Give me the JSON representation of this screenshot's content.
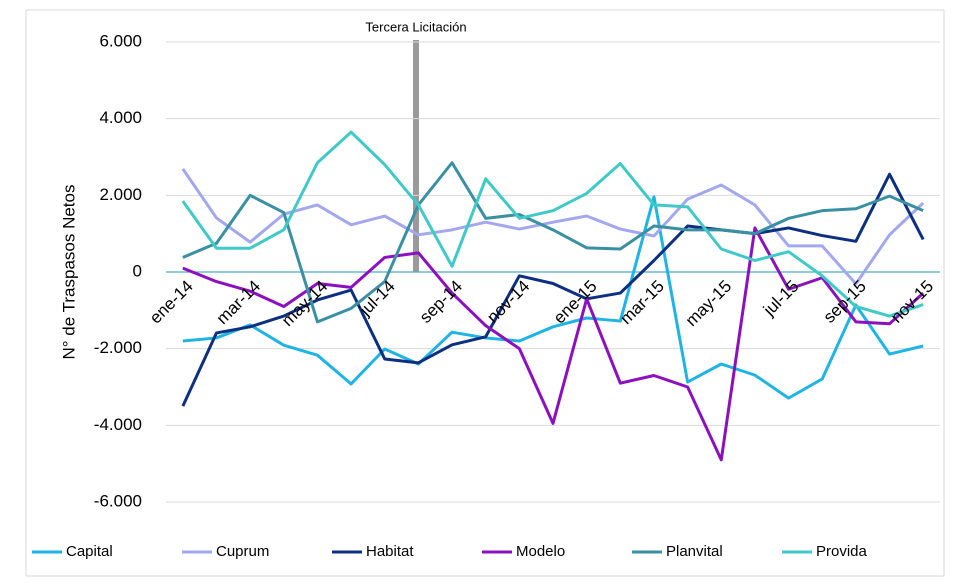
{
  "chart_data": {
    "type": "line",
    "ylabel": "N° de Traspasos Netos",
    "annotation": "Tercera Licitación",
    "categories": [
      "ene-14",
      null,
      "mar-14",
      null,
      "may-14",
      null,
      "jul-14",
      null,
      "sep-14",
      null,
      "nov-14",
      null,
      "ene-15",
      null,
      "mar-15",
      null,
      "may-15",
      null,
      "jul-15",
      null,
      "sep-15",
      null,
      "nov-15"
    ],
    "ylim": [
      -6000,
      6000
    ],
    "yticks": [
      {
        "value": -6000,
        "label": "-6.000"
      },
      {
        "value": -4000,
        "label": "-4.000"
      },
      {
        "value": -2000,
        "label": "-2.000"
      },
      0,
      {
        "value": 2000,
        "label": "2.000"
      },
      {
        "value": 4000,
        "label": "4.000"
      },
      {
        "value": 6000,
        "label": "6.000"
      }
    ],
    "grid": true,
    "legend": "bottom",
    "series": [
      {
        "name": "Capital",
        "color": "#1fb4e4",
        "values": [
          -1800,
          -1720,
          -1380,
          -1910,
          -2170,
          -2920,
          -2010,
          -2400,
          -1570,
          -1720,
          -1800,
          -1430,
          -1200,
          -1280,
          1960,
          -2870,
          -2400,
          -2690,
          -3290,
          -2790,
          -860,
          -2140,
          -1930
        ]
      },
      {
        "name": "Cuprum",
        "color": "#a3a8ee",
        "values": [
          2690,
          1410,
          780,
          1510,
          1750,
          1230,
          1460,
          970,
          1100,
          1300,
          1120,
          1300,
          1460,
          1120,
          940,
          1900,
          2270,
          1750,
          680,
          680,
          -310,
          970,
          1800
        ]
      },
      {
        "name": "Habitat",
        "color": "#0d2f82",
        "values": [
          -3500,
          -1590,
          -1430,
          -1150,
          -730,
          -470,
          -2270,
          -2370,
          -1900,
          -1690,
          -100,
          -300,
          -700,
          -550,
          300,
          1200,
          1100,
          1000,
          1150,
          950,
          800,
          2550,
          850
        ]
      },
      {
        "name": "Modelo",
        "color": "#8c10bf",
        "values": [
          100,
          -250,
          -500,
          -900,
          -300,
          -400,
          380,
          500,
          -550,
          -1400,
          -2000,
          -3950,
          -700,
          -2900,
          -2700,
          -3000,
          -4900,
          1150,
          -450,
          -150,
          -1300,
          -1350,
          -550
        ]
      },
      {
        "name": "Planvital",
        "color": "#3a90a2",
        "values": [
          380,
          750,
          2000,
          1550,
          -1300,
          -950,
          -250,
          1750,
          2850,
          1400,
          1500,
          1100,
          630,
          600,
          1200,
          1100,
          1100,
          1000,
          1400,
          1600,
          1650,
          1980,
          1600
        ]
      },
      {
        "name": "Provida",
        "color": "#40c9c7",
        "values": [
          1850,
          620,
          620,
          1100,
          2850,
          3650,
          2800,
          1750,
          150,
          2430,
          1400,
          1600,
          2050,
          2830,
          1750,
          1700,
          600,
          300,
          530,
          -100,
          -900,
          -1150,
          -850
        ]
      }
    ]
  }
}
